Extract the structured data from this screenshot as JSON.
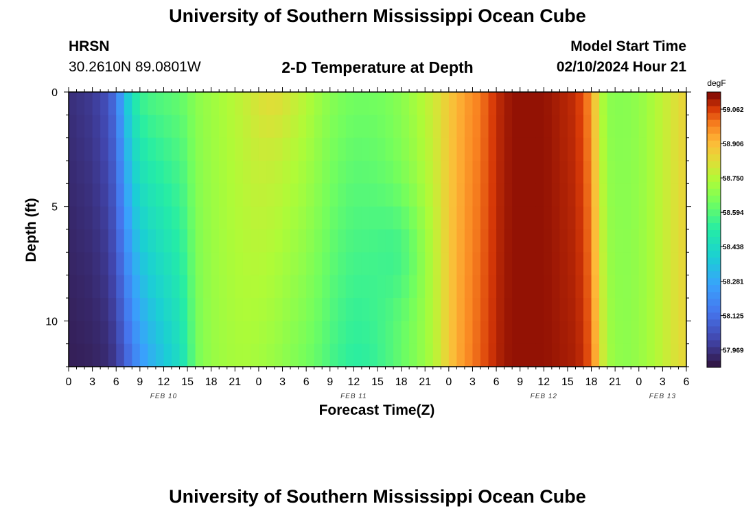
{
  "header": {
    "title": "University of Southern Mississippi Ocean Cube",
    "station": "HRSN",
    "coords": "30.2610N  89.0801W",
    "subtitle": "2-D Temperature at Depth",
    "model_label": "Model Start Time",
    "model_time": "02/10/2024 Hour 21"
  },
  "footer": {
    "title": "University of Southern Mississippi Ocean Cube"
  },
  "chart_data": {
    "type": "heatmap",
    "title": "2-D Temperature at Depth",
    "xlabel": "Forecast Time(Z)",
    "ylabel": "Depth (ft)",
    "x_start_hour": 0,
    "x_end_hour": 78,
    "x_step_hours": 1,
    "x_tick_hours": [
      0,
      3,
      6,
      9,
      12,
      15,
      18,
      21,
      24,
      27,
      30,
      33,
      36,
      39,
      42,
      45,
      48,
      51,
      54,
      57,
      60,
      63,
      66,
      69,
      72,
      75,
      78
    ],
    "x_tick_labels": [
      "0",
      "3",
      "6",
      "9",
      "12",
      "15",
      "18",
      "21",
      "0",
      "3",
      "6",
      "9",
      "12",
      "15",
      "18",
      "21",
      "0",
      "3",
      "6",
      "9",
      "12",
      "15",
      "18",
      "21",
      "0",
      "3",
      "6"
    ],
    "day_labels": [
      {
        "hour": 12,
        "text": "FEB 10"
      },
      {
        "hour": 36,
        "text": "FEB 11"
      },
      {
        "hour": 60,
        "text": "FEB 12"
      },
      {
        "hour": 75,
        "text": "FEB 13"
      }
    ],
    "depth_levels_ft": [
      0,
      1,
      2,
      3,
      4,
      5,
      6,
      7,
      8,
      9,
      10,
      11,
      12
    ],
    "y_range_ft": [
      0,
      12
    ],
    "y_ticks": [
      0,
      5,
      10
    ],
    "colorbar": {
      "unit": "degF",
      "min": 57.89,
      "max": 59.14,
      "tick_values": [
        57.969,
        58.125,
        58.281,
        58.438,
        58.594,
        58.75,
        58.906,
        59.062
      ],
      "tick_labels": [
        "57.969",
        "58.125",
        "58.281",
        "58.438",
        "58.594",
        "58.750",
        "58.906",
        "59.062"
      ]
    },
    "temperature_profile_degF": {
      "hours": [
        0,
        3,
        5,
        6,
        7,
        8,
        9,
        10,
        12,
        14,
        15,
        16,
        18,
        20,
        22,
        24,
        26,
        28,
        30,
        32,
        34,
        36,
        38,
        40,
        42,
        44,
        46,
        47,
        48,
        50,
        52,
        53,
        54,
        55,
        56,
        57,
        58,
        60,
        62,
        64,
        65,
        66,
        67,
        68,
        70,
        72,
        74,
        76,
        78
      ],
      "surface": [
        57.96,
        57.99,
        58.05,
        58.15,
        58.32,
        58.47,
        58.55,
        58.58,
        58.6,
        58.62,
        58.64,
        58.68,
        58.71,
        58.74,
        58.77,
        58.8,
        58.8,
        58.78,
        58.75,
        58.7,
        58.66,
        58.64,
        58.64,
        58.65,
        58.68,
        58.73,
        58.79,
        58.83,
        58.88,
        58.95,
        59.0,
        59.04,
        59.08,
        59.1,
        59.12,
        59.12,
        59.12,
        59.12,
        59.1,
        59.08,
        59.04,
        58.96,
        58.78,
        58.68,
        58.67,
        58.69,
        58.74,
        58.8,
        58.86
      ],
      "bottom": [
        57.92,
        57.93,
        57.95,
        57.99,
        58.06,
        58.15,
        58.22,
        58.28,
        58.36,
        58.44,
        58.52,
        58.64,
        58.7,
        58.72,
        58.73,
        58.72,
        58.7,
        58.67,
        58.64,
        58.6,
        58.55,
        58.52,
        58.53,
        58.57,
        58.62,
        58.67,
        58.74,
        58.8,
        58.88,
        58.97,
        59.03,
        59.06,
        59.09,
        59.11,
        59.12,
        59.12,
        59.12,
        59.12,
        59.11,
        59.1,
        59.08,
        59.02,
        58.86,
        58.72,
        58.68,
        58.7,
        58.74,
        58.8,
        58.85
      ]
    }
  }
}
